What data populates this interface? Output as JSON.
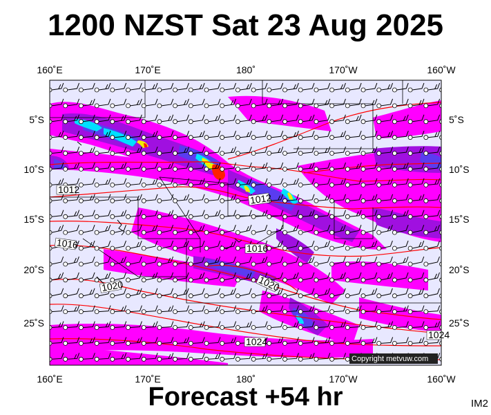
{
  "title": "1200 NZST Sat 23 Aug 2025",
  "footer": "Forecast +54 hr",
  "image_tag": "IM2",
  "copyright": "Copyright metvuw.com",
  "longitude_labels": [
    "160˚E",
    "170˚E",
    "180˚",
    "170˚W",
    "160˚W"
  ],
  "latitude_labels": [
    "5˚S",
    "10˚S",
    "15˚S",
    "20˚S",
    "25˚S"
  ],
  "isobar_labels": [
    "1012",
    "1012",
    "1016",
    "1016",
    "1020",
    "1020",
    "1024",
    "1024"
  ],
  "colors": {
    "background": "#e8e8ff",
    "rain_light": "#ff00ff",
    "rain_medium": "#a010e0",
    "rain_heavy": "#5a3cf0",
    "rain_cyan": "#00e0ff",
    "rain_yellow": "#f0f000",
    "rain_red": "#ff2000",
    "isobar": "#ff0000"
  }
}
